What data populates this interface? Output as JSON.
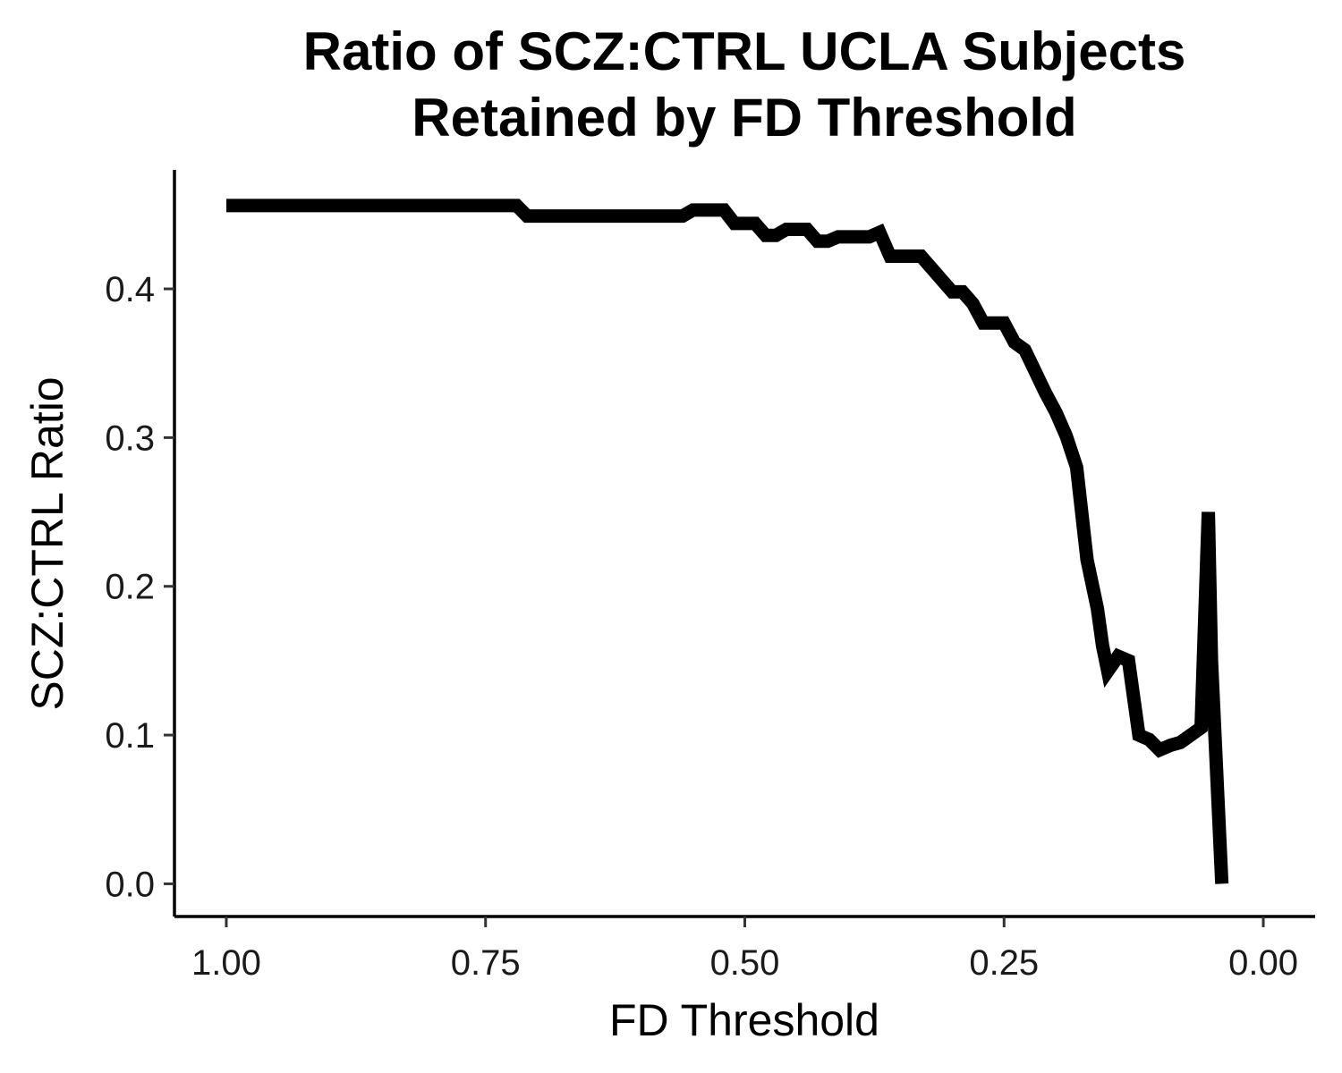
{
  "chart_data": {
    "type": "line",
    "title": [
      "Ratio of SCZ:CTRL UCLA Subjects",
      "Retained by FD Threshold"
    ],
    "xlabel": "FD Threshold",
    "ylabel": "SCZ:CTRL Ratio",
    "x_reversed": true,
    "xlim": [
      1.05,
      -0.05
    ],
    "ylim": [
      -0.022,
      0.48
    ],
    "x_ticks": [
      1.0,
      0.75,
      0.5,
      0.25,
      0.0
    ],
    "x_tick_labels": [
      "1.00",
      "0.75",
      "0.50",
      "0.25",
      "0.00"
    ],
    "y_ticks": [
      0.0,
      0.1,
      0.2,
      0.3,
      0.4
    ],
    "y_tick_labels": [
      "0.0",
      "0.1",
      "0.2",
      "0.3",
      "0.4"
    ],
    "grid": false,
    "legend": "none",
    "line_color": "#000000",
    "series": [
      {
        "x": [
          1.0,
          0.72,
          0.71,
          0.56,
          0.55,
          0.52,
          0.51,
          0.49,
          0.48,
          0.47,
          0.46,
          0.44,
          0.43,
          0.42,
          0.41,
          0.38,
          0.37,
          0.36,
          0.35,
          0.33,
          0.3,
          0.29,
          0.28,
          0.27,
          0.25,
          0.24,
          0.23,
          0.21,
          0.2,
          0.19,
          0.18,
          0.17,
          0.16,
          0.155,
          0.15,
          0.14,
          0.13,
          0.12,
          0.11,
          0.1,
          0.09,
          0.08,
          0.07,
          0.06,
          0.053,
          0.05,
          0.04
        ],
        "y": [
          0.456,
          0.456,
          0.449,
          0.449,
          0.453,
          0.453,
          0.444,
          0.444,
          0.436,
          0.436,
          0.44,
          0.44,
          0.432,
          0.432,
          0.435,
          0.435,
          0.438,
          0.422,
          0.422,
          0.422,
          0.398,
          0.398,
          0.39,
          0.377,
          0.377,
          0.364,
          0.359,
          0.33,
          0.317,
          0.301,
          0.28,
          0.218,
          0.185,
          0.16,
          0.143,
          0.153,
          0.15,
          0.1,
          0.097,
          0.09,
          0.093,
          0.095,
          0.1,
          0.105,
          0.25,
          0.15,
          0.0
        ]
      }
    ]
  }
}
